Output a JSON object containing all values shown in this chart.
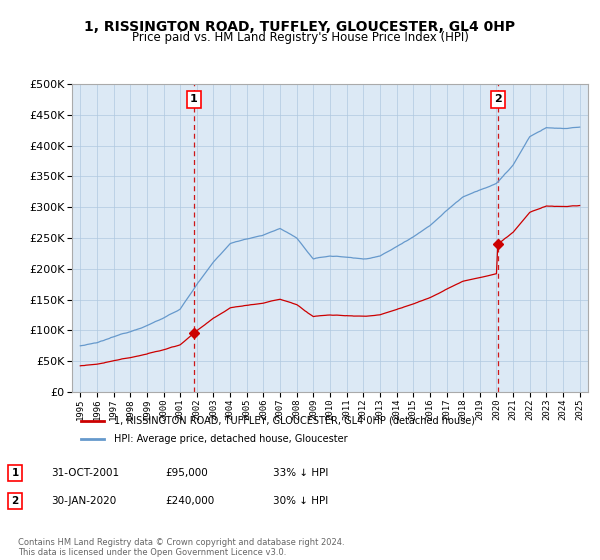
{
  "title": "1, RISSINGTON ROAD, TUFFLEY, GLOUCESTER, GL4 0HP",
  "subtitle": "Price paid vs. HM Land Registry's House Price Index (HPI)",
  "legend_property": "1, RISSINGTON ROAD, TUFFLEY, GLOUCESTER, GL4 0HP (detached house)",
  "legend_hpi": "HPI: Average price, detached house, Gloucester",
  "table_rows": [
    {
      "num": "1",
      "date": "31-OCT-2001",
      "price": "£95,000",
      "pct": "33% ↓ HPI"
    },
    {
      "num": "2",
      "date": "30-JAN-2020",
      "price": "£240,000",
      "pct": "30% ↓ HPI"
    }
  ],
  "footnote": "Contains HM Land Registry data © Crown copyright and database right 2024.\nThis data is licensed under the Open Government Licence v3.0.",
  "vline_years": [
    2001.83,
    2020.08
  ],
  "sale_points": [
    {
      "year": 2001.83,
      "price": 95000
    },
    {
      "year": 2020.08,
      "price": 240000
    }
  ],
  "property_color": "#cc0000",
  "hpi_color": "#6699cc",
  "vline_color": "#cc0000",
  "plot_bg_color": "#dce9f5",
  "background_color": "#ffffff",
  "xlim": [
    1994.5,
    2025.5
  ],
  "ylim": [
    0,
    500000
  ],
  "yticks": [
    0,
    50000,
    100000,
    150000,
    200000,
    250000,
    300000,
    350000,
    400000,
    450000,
    500000
  ],
  "hpi_anchors_years": [
    1995,
    1996,
    1997,
    1998,
    1999,
    2000,
    2001,
    2002,
    2003,
    2004,
    2005,
    2006,
    2007,
    2008,
    2009,
    2010,
    2011,
    2012,
    2013,
    2014,
    2015,
    2016,
    2017,
    2018,
    2019,
    2020,
    2021,
    2022,
    2023,
    2024,
    2025
  ],
  "hpi_anchors_vals": [
    75000,
    79000,
    88000,
    97000,
    108000,
    120000,
    135000,
    175000,
    210000,
    240000,
    248000,
    255000,
    265000,
    250000,
    215000,
    220000,
    218000,
    215000,
    220000,
    235000,
    252000,
    270000,
    295000,
    318000,
    330000,
    340000,
    370000,
    415000,
    430000,
    428000,
    430000
  ]
}
